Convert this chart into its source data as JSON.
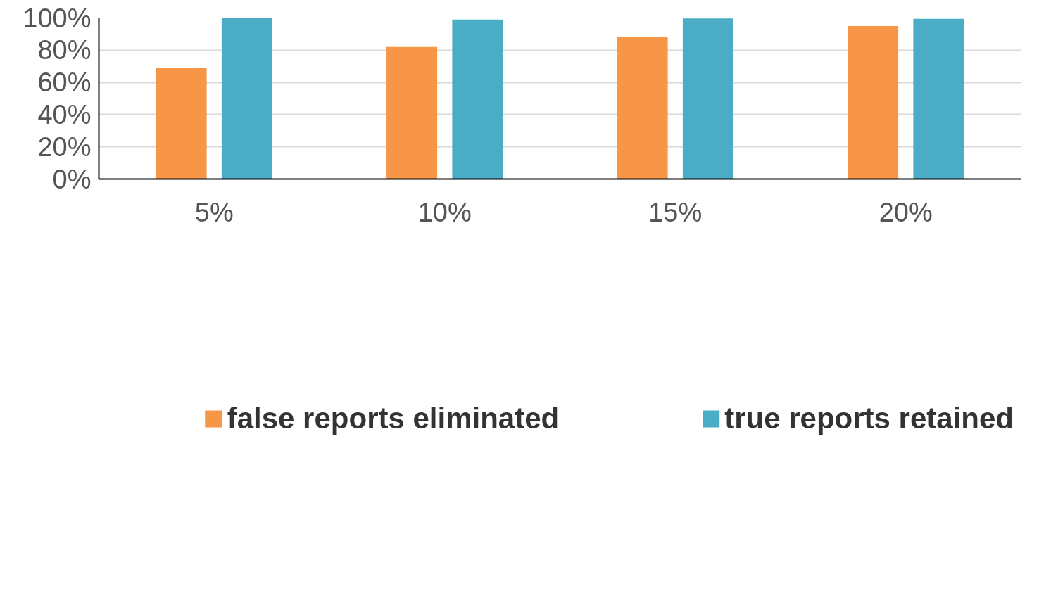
{
  "chart_data": {
    "type": "bar",
    "categories": [
      "5%",
      "10%",
      "15%",
      "20%"
    ],
    "series": [
      {
        "name": "false reports eliminated",
        "color": "#f79646",
        "values": [
          69,
          82,
          88,
          95
        ]
      },
      {
        "name": "true reports retained",
        "color": "#4bacc6",
        "values": [
          100,
          99,
          99.7,
          99.4
        ]
      }
    ],
    "ylim": [
      0,
      100
    ],
    "yticks": [
      {
        "value": 0,
        "label": "0%"
      },
      {
        "value": 20,
        "label": "20%"
      },
      {
        "value": 40,
        "label": "40%"
      },
      {
        "value": 60,
        "label": "60%"
      },
      {
        "value": 80,
        "label": "80%"
      },
      {
        "value": 100,
        "label": "100%"
      }
    ],
    "grid": "y",
    "legend": "bottom"
  }
}
